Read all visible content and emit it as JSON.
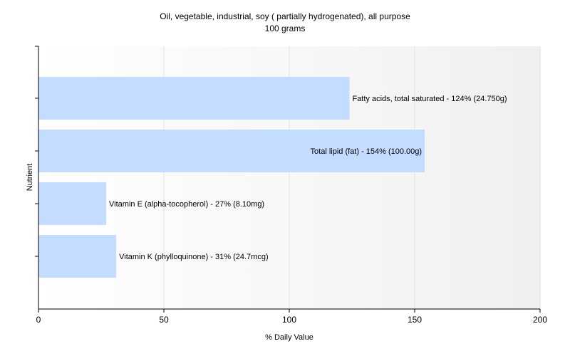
{
  "chart_data": {
    "type": "bar",
    "orientation": "horizontal",
    "title": "Oil, vegetable, industrial, soy ( partially hydrogenated), all purpose",
    "subtitle": "100 grams",
    "xlabel": "% Daily Value",
    "ylabel": "Nutrient",
    "xlim": [
      0,
      200
    ],
    "xticks": [
      0,
      50,
      100,
      150,
      200
    ],
    "grid": true,
    "bar_color": "#c4dcff",
    "categories": [
      "Fatty acids, total saturated",
      "Total lipid (fat)",
      "Vitamin E (alpha-tocopherol)",
      "Vitamin K (phylloquinone)"
    ],
    "values": [
      124,
      154,
      27,
      31
    ],
    "labels": [
      "Fatty acids, total saturated - 124% (24.750g)",
      "Total lipid (fat) - 154% (100.00g)",
      "Vitamin E (alpha-tocopherol) - 27% (8.10mg)",
      "Vitamin K (phylloquinone) - 31% (24.7mcg)"
    ]
  }
}
